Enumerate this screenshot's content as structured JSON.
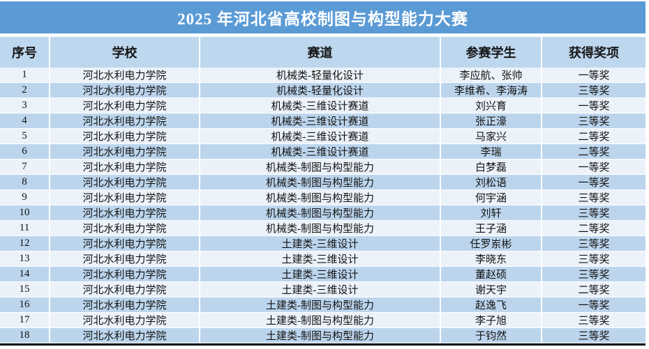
{
  "title": "2025 年河北省高校制图与构型能力大赛",
  "colors": {
    "title_bg": "#5B9BD5",
    "header_bg": "#BDD7EE",
    "row_light_bg": "#EBF2F9",
    "row_dark_bg": "#BCD5ED",
    "title_text": "#FFFFFF",
    "body_text": "#131313",
    "bottom_border": "#000000"
  },
  "table": {
    "columns": [
      "序号",
      "学校",
      "赛道",
      "参赛学生",
      "获得奖项"
    ],
    "rows": [
      [
        "1",
        "河北水利电力学院",
        "机械类-轻量化设计",
        "李应航、张帅",
        "一等奖"
      ],
      [
        "2",
        "河北水利电力学院",
        "机械类-轻量化设计",
        "李维希、李海涛",
        "三等奖"
      ],
      [
        "3",
        "河北水利电力学院",
        "机械类-三维设计赛道",
        "刘兴育",
        "一等奖"
      ],
      [
        "4",
        "河北水利电力学院",
        "机械类-三维设计赛道",
        "张正濠",
        "三等奖"
      ],
      [
        "5",
        "河北水利电力学院",
        "机械类-三维设计赛道",
        "马家兴",
        "二等奖"
      ],
      [
        "6",
        "河北水利电力学院",
        "机械类-三维设计赛道",
        "李瑞",
        "二等奖"
      ],
      [
        "7",
        "河北水利电力学院",
        "机械类-制图与构型能力",
        "白梦磊",
        "一等奖"
      ],
      [
        "8",
        "河北水利电力学院",
        "机械类-制图与构型能力",
        "刘松语",
        "一等奖"
      ],
      [
        "9",
        "河北水利电力学院",
        "机械类-制图与构型能力",
        "何宇涵",
        "三等奖"
      ],
      [
        "10",
        "河北水利电力学院",
        "机械类-制图与构型能力",
        "刘轩",
        "三等奖"
      ],
      [
        "11",
        "河北水利电力学院",
        "机械类-制图与构型能力",
        "王子涵",
        "二等奖"
      ],
      [
        "12",
        "河北水利电力学院",
        "土建类-三维设计",
        "任罗岽彬",
        "三等奖"
      ],
      [
        "13",
        "河北水利电力学院",
        "土建类-三维设计",
        "李晓东",
        "三等奖"
      ],
      [
        "14",
        "河北水利电力学院",
        "土建类-三维设计",
        "董赵硕",
        "三等奖"
      ],
      [
        "15",
        "河北水利电力学院",
        "土建类-三维设计",
        "谢天宇",
        "二等奖"
      ],
      [
        "16",
        "河北水利电力学院",
        "土建类-制图与构型能力",
        "赵逸飞",
        "一等奖"
      ],
      [
        "17",
        "河北水利电力学院",
        "土建类-制图与构型能力",
        "李子旭",
        "三等奖"
      ],
      [
        "18",
        "河北水利电力学院",
        "土建类-制图与构型能力",
        "于钧然",
        "三等奖"
      ]
    ]
  }
}
